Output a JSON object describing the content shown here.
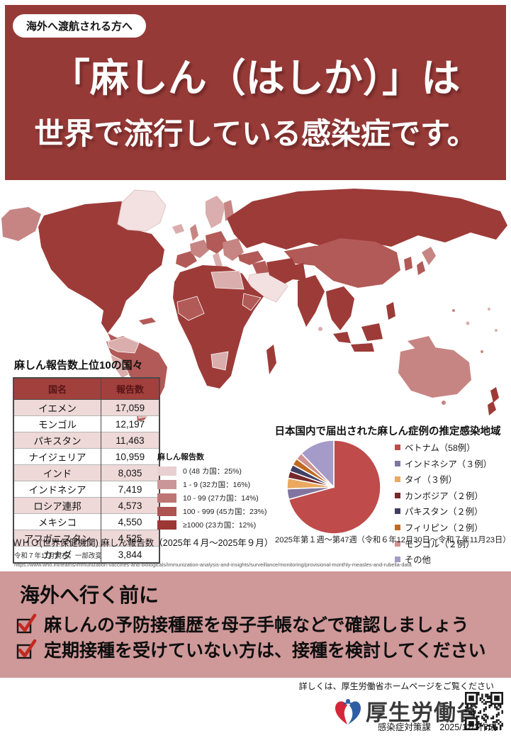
{
  "header": {
    "badge": "海外へ渡航される方へ",
    "title_line1": "「麻しん（はしか）」は",
    "title_line2": "世界で流行している感染症です。",
    "bg_color": "#963a37"
  },
  "table": {
    "title": "麻しん報告数上位10の国々",
    "col_country": "国名",
    "col_count": "報告数",
    "rows": [
      {
        "country": "イエメン",
        "count": "17,059"
      },
      {
        "country": "モンゴル",
        "count": "12,197"
      },
      {
        "country": "パキスタン",
        "count": "11,463"
      },
      {
        "country": "ナイジェリア",
        "count": "10,959"
      },
      {
        "country": "インド",
        "count": "8,035"
      },
      {
        "country": "インドネシア",
        "count": "7,419"
      },
      {
        "country": "ロシア連邦",
        "count": "4,573"
      },
      {
        "country": "メキシコ",
        "count": "4,550"
      },
      {
        "country": "アフガニスタン",
        "count": "4,525"
      },
      {
        "country": "カナダ",
        "count": "3,844"
      }
    ]
  },
  "map_legend": {
    "title": "麻しん報告数",
    "items": [
      {
        "label": "0 (48 カ国：25%)",
        "color": "#e9cfd0"
      },
      {
        "label": "1 - 9 (32カ国：16%)",
        "color": "#cb9697"
      },
      {
        "label": "10 - 99 (27カ国：14%)",
        "color": "#bd7674"
      },
      {
        "label": "100 - 999 (45カ国：23%)",
        "color": "#ad5351"
      },
      {
        "label": "≥1000 (23カ国：12%)",
        "color": "#9c3734"
      }
    ]
  },
  "pie": {
    "title": "日本国内で届出された麻しん症例の推定感染地域",
    "caption": "2025年第１週～第47週（令和６年12月30日～令和７年11月23日）",
    "legend": [
      {
        "label": "ベトナム（58例）",
        "color": "#bf4b4b"
      },
      {
        "label": "インドネシア（３例）",
        "color": "#8175a0"
      },
      {
        "label": "タイ（３例）",
        "color": "#eaa95f"
      },
      {
        "label": "カンボジア（２例）",
        "color": "#77282a"
      },
      {
        "label": "パキスタン（２例）",
        "color": "#403e63"
      },
      {
        "label": "フィリピン（２例）",
        "color": "#c06a22"
      },
      {
        "label": "モンゴル（２例）",
        "color": "#cf9191"
      },
      {
        "label": "その他",
        "color": "#a49bc8"
      }
    ]
  },
  "chart_data": [
    {
      "type": "table",
      "title": "麻しん報告数上位10の国々",
      "columns": [
        "国名",
        "報告数"
      ],
      "rows": [
        [
          "イエメン",
          17059
        ],
        [
          "モンゴル",
          12197
        ],
        [
          "パキスタン",
          11463
        ],
        [
          "ナイジェリア",
          10959
        ],
        [
          "インド",
          8035
        ],
        [
          "インドネシア",
          7419
        ],
        [
          "ロシア連邦",
          4573
        ],
        [
          "メキシコ",
          4550
        ],
        [
          "アフガニスタン",
          4525
        ],
        [
          "カナダ",
          3844
        ]
      ]
    },
    {
      "type": "heatmap",
      "subtype": "world-choropleth",
      "legend_title": "麻しん報告数",
      "bins": [
        {
          "range": "0",
          "countries": 48,
          "percent": 25
        },
        {
          "range": "1 - 9",
          "countries": 32,
          "percent": 16
        },
        {
          "range": "10 - 99",
          "countries": 27,
          "percent": 14
        },
        {
          "range": "100 - 999",
          "countries": 45,
          "percent": 23
        },
        {
          "range": "≥1000",
          "countries": 23,
          "percent": 12
        }
      ]
    },
    {
      "type": "pie",
      "title": "日本国内で届出された麻しん症例の推定感染地域",
      "labels": [
        "ベトナム（58例）",
        "インドネシア（３例）",
        "タイ（３例）",
        "カンボジア（２例）",
        "パキスタン（２例）",
        "フィリピン（２例）",
        "モンゴル（２例）",
        "その他"
      ],
      "values": [
        58,
        3,
        3,
        2,
        2,
        2,
        2,
        10
      ],
      "start_angle_deg": -90,
      "direction": "clockwise",
      "legend_position": "right",
      "caption": "2025年第１週～第47週（令和６年12月30日～令和７年11月23日）"
    }
  ],
  "sources": {
    "who_line": "ＷＨＯ(世界保健機関) 麻しん報告数（2025年４月～2025年９月）",
    "note": "令和７年11月現在；一部改変",
    "url": "https://www.who.int/teams/immunization-vaccines-and-biologicals/immunization-analysis-and-insights/surveillance/monitoring/provisional-monthly-measles-and-rubella-data"
  },
  "advice": {
    "title": "海外へ行く前に",
    "items": [
      "麻しんの予防接種歴を母子手帳などで確認しましょう",
      "定期接種を受けていない方は、接種を検討してください"
    ]
  },
  "footer": {
    "note": "詳しくは、厚生労働省ホームページをご覧ください",
    "ministry": "厚生労働省",
    "dept_line": "感染症対策課　2025/12/3作成"
  }
}
